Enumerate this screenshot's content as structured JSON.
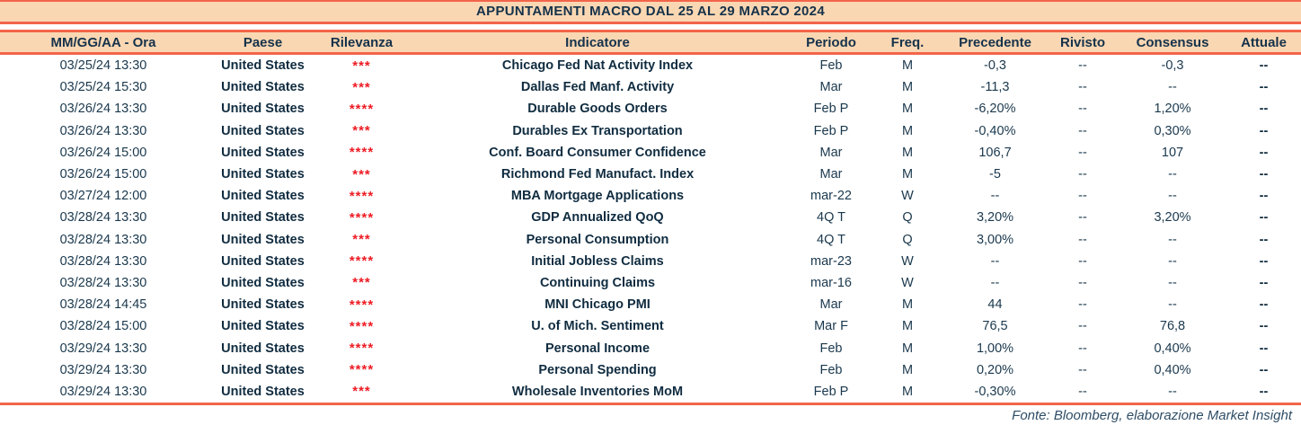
{
  "title": "APPUNTAMENTI MACRO DAL 25 AL 29 MARZO 2024",
  "colors": {
    "band_peach": "#fad7b3",
    "rule_red_orange": "#f2654a",
    "text_navy": "#1a384d",
    "relevance_red": "#ed1c24",
    "footer_text": "#2e4d66"
  },
  "table": {
    "columns": [
      "MM/GG/AA - Ora",
      "Paese",
      "Rilevanza",
      "Indicatore",
      "Periodo",
      "Freq.",
      "Precedente",
      "Rivisto",
      "Consensus",
      "Attuale"
    ],
    "rows": [
      [
        "03/25/24 13:30",
        "United States",
        "***",
        "Chicago Fed Nat Activity Index",
        "Feb",
        "M",
        "-0,3",
        "--",
        "-0,3",
        "--"
      ],
      [
        "03/25/24 15:30",
        "United States",
        "***",
        "Dallas Fed Manf. Activity",
        "Mar",
        "M",
        "-11,3",
        "--",
        "--",
        "--"
      ],
      [
        "03/26/24 13:30",
        "United States",
        "****",
        "Durable Goods Orders",
        "Feb P",
        "M",
        "-6,20%",
        "--",
        "1,20%",
        "--"
      ],
      [
        "03/26/24 13:30",
        "United States",
        "***",
        "Durables Ex Transportation",
        "Feb P",
        "M",
        "-0,40%",
        "--",
        "0,30%",
        "--"
      ],
      [
        "03/26/24 15:00",
        "United States",
        "****",
        "Conf. Board Consumer Confidence",
        "Mar",
        "M",
        "106,7",
        "--",
        "107",
        "--"
      ],
      [
        "03/26/24 15:00",
        "United States",
        "***",
        "Richmond Fed Manufact. Index",
        "Mar",
        "M",
        "-5",
        "--",
        "--",
        "--"
      ],
      [
        "03/27/24 12:00",
        "United States",
        "****",
        "MBA Mortgage Applications",
        "mar-22",
        "W",
        "--",
        "--",
        "--",
        "--"
      ],
      [
        "03/28/24 13:30",
        "United States",
        "****",
        "GDP Annualized QoQ",
        "4Q T",
        "Q",
        "3,20%",
        "--",
        "3,20%",
        "--"
      ],
      [
        "03/28/24 13:30",
        "United States",
        "***",
        "Personal Consumption",
        "4Q T",
        "Q",
        "3,00%",
        "--",
        "--",
        "--"
      ],
      [
        "03/28/24 13:30",
        "United States",
        "****",
        "Initial Jobless Claims",
        "mar-23",
        "W",
        "--",
        "--",
        "--",
        "--"
      ],
      [
        "03/28/24 13:30",
        "United States",
        "***",
        "Continuing Claims",
        "mar-16",
        "W",
        "--",
        "--",
        "--",
        "--"
      ],
      [
        "03/28/24 14:45",
        "United States",
        "****",
        "MNI Chicago PMI",
        "Mar",
        "M",
        "44",
        "--",
        "--",
        "--"
      ],
      [
        "03/28/24 15:00",
        "United States",
        "****",
        "U. of Mich. Sentiment",
        "Mar F",
        "M",
        "76,5",
        "--",
        "76,8",
        "--"
      ],
      [
        "03/29/24 13:30",
        "United States",
        "****",
        "Personal Income",
        "Feb",
        "M",
        "1,00%",
        "--",
        "0,40%",
        "--"
      ],
      [
        "03/29/24 13:30",
        "United States",
        "****",
        "Personal Spending",
        "Feb",
        "M",
        "0,20%",
        "--",
        "0,40%",
        "--"
      ],
      [
        "03/29/24 13:30",
        "United States",
        "***",
        "Wholesale Inventories MoM",
        "Feb P",
        "M",
        "-0,30%",
        "--",
        "--",
        "--"
      ]
    ]
  },
  "footer": {
    "source": "Fonte: Bloomberg, elaborazione Market Insight"
  }
}
